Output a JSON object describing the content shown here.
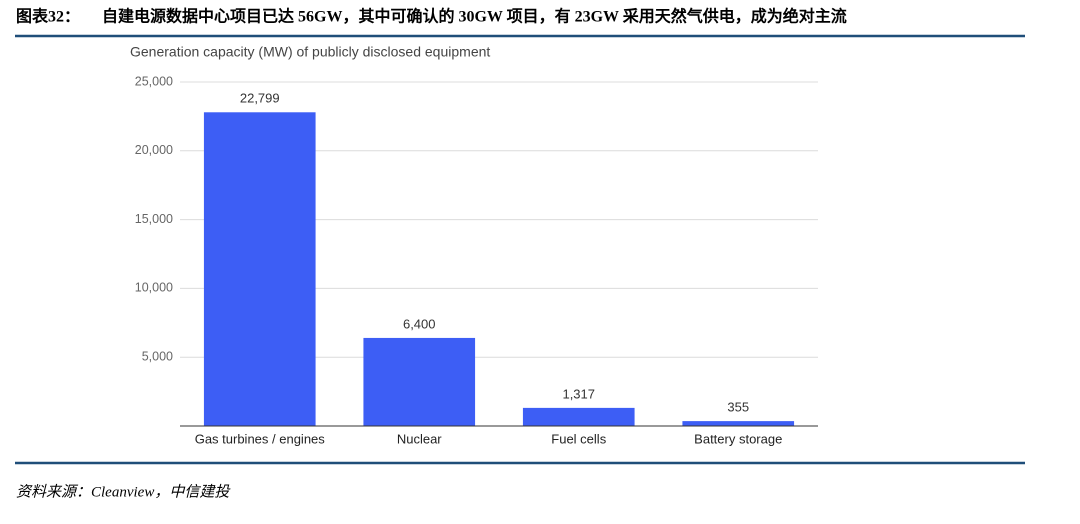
{
  "header": {
    "figure_label": "图表32：",
    "title": "自建电源数据中心项目已达 56GW，其中可确认的 30GW 项目，有 23GW 采用天然气供电，成为绝对主流"
  },
  "chart_data": {
    "type": "bar",
    "title": "Generation capacity (MW) of publicly disclosed equipment",
    "categories": [
      "Gas turbines / engines",
      "Nuclear",
      "Fuel cells",
      "Battery storage"
    ],
    "values": [
      22799,
      6400,
      1317,
      355
    ],
    "value_labels": [
      "22,799",
      "6,400",
      "1,317",
      "355"
    ],
    "color": "#3d5ef5",
    "ylim": [
      0,
      25000
    ],
    "yticks": [
      {
        "value": 5000,
        "label": "5,000"
      },
      {
        "value": 10000,
        "label": "10,000"
      },
      {
        "value": 15000,
        "label": "15,000"
      },
      {
        "value": 20000,
        "label": "20,000"
      },
      {
        "value": 25000,
        "label": "25,000"
      }
    ],
    "grid": true
  },
  "footer": {
    "source": "资料来源：Cleanview，中信建投"
  }
}
